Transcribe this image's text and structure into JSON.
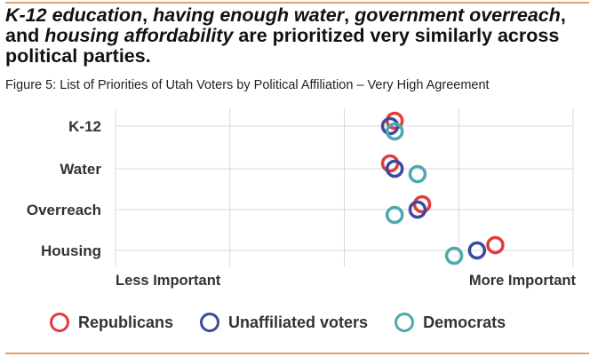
{
  "headline": {
    "part1": "K-12 education",
    "sep1": ", ",
    "part2": "having enough water",
    "sep2": ", ",
    "part3": "government overreach",
    "sep3": ",",
    "line2_pre": "and ",
    "part4": "housing affordability",
    "line2_post": " are prioritized very similarly across",
    "line3": "political parties."
  },
  "caption": "Figure 5: List of Priorities of Utah Voters by Political Affiliation – Very High Agreement",
  "colors": {
    "republicans": "#e23b3b",
    "unaffiliated": "#3a4aa0",
    "democrats": "#4ba9ad",
    "grid": "#d9d9d9",
    "rule": "#e0a070"
  },
  "chart_data": {
    "type": "scatter",
    "categories": [
      "K-12",
      "Water",
      "Overreach",
      "Housing"
    ],
    "x_axis": {
      "left_label": "Less Important",
      "right_label": "More Important",
      "range": [
        0,
        1
      ]
    },
    "grid": true,
    "legend_position": "bottom",
    "series": [
      {
        "name": "Republicans",
        "key": "republicans",
        "values": [
          0.61,
          0.6,
          0.67,
          0.83
        ]
      },
      {
        "name": "Unaffiliated voters",
        "key": "unaffiliated",
        "values": [
          0.6,
          0.61,
          0.66,
          0.79
        ]
      },
      {
        "name": "Democrats",
        "key": "democrats",
        "values": [
          0.61,
          0.66,
          0.61,
          0.74
        ]
      }
    ]
  },
  "legend": [
    {
      "label": "Republicans",
      "key": "republicans"
    },
    {
      "label": "Unaffiliated voters",
      "key": "unaffiliated"
    },
    {
      "label": "Democrats",
      "key": "democrats"
    }
  ]
}
